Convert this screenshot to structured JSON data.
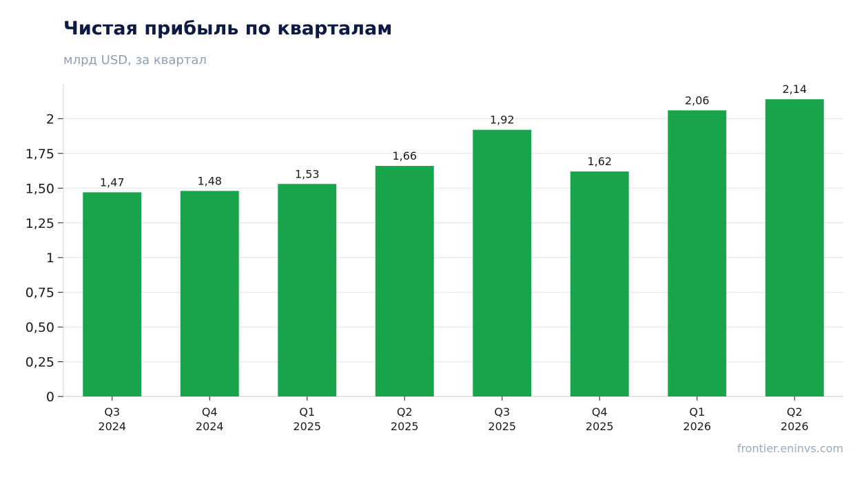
{
  "chart_data": {
    "type": "bar",
    "title": "Чистая прибыль по кварталам",
    "subtitle": "млрд USD, за квартал",
    "xlabel": "",
    "ylabel": "",
    "categories": [
      [
        "Q3",
        "2024"
      ],
      [
        "Q4",
        "2024"
      ],
      [
        "Q1",
        "2025"
      ],
      [
        "Q2",
        "2025"
      ],
      [
        "Q3",
        "2025"
      ],
      [
        "Q4",
        "2025"
      ],
      [
        "Q1",
        "2026"
      ],
      [
        "Q2",
        "2026"
      ]
    ],
    "values": [
      1.47,
      1.48,
      1.53,
      1.66,
      1.92,
      1.62,
      2.06,
      2.14
    ],
    "value_labels": [
      "1,47",
      "1,48",
      "1,53",
      "1,66",
      "1,92",
      "1,62",
      "2,06",
      "2,14"
    ],
    "yticks": [
      0,
      0.25,
      0.5,
      0.75,
      1,
      1.25,
      1.5,
      1.75,
      2
    ],
    "ytick_labels": [
      "0",
      "0,25",
      "0,50",
      "0,75",
      "1",
      "1,25",
      "1,50",
      "1,75",
      "2"
    ],
    "ylim": [
      0,
      2.25
    ],
    "grid": "horizontal",
    "legend": "none",
    "bar_color": "#19a34a",
    "grid_color": "#e3e7ee",
    "axis_color": "#cfd5de"
  },
  "source": "frontier.eninvs.com"
}
